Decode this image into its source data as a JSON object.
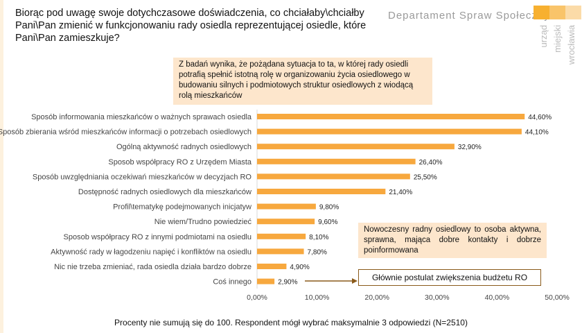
{
  "header": {
    "title": "Biorąc pod uwagę swoje dotychczasowe doświadczenia, co chciałaby\\chciałby Pani\\Pan zmienić w funkcjonowaniu rady osiedla reprezentującej osiedle, które Pani\\Pan zamieszkuje?",
    "logo_text": "Departament Spraw Społecznych",
    "logo_vertical": [
      "urząd",
      "miejski",
      "wrocławia"
    ],
    "logo_colors": [
      "#f7b030",
      "#f9c46a",
      "#fbdba8"
    ]
  },
  "callouts": {
    "top": "Z badań wynika, że pożądana sytuacja to ta, w której rady osiedli potrafią spełnić istotną rolę w organizowaniu życia osiedlowego w budowaniu silnych i podmiotowych struktur osiedlowych z wiodącą rolą mieszkańców",
    "middle": "Nowoczesny radny osiedlowy to osoba aktywna, sprawna, mająca dobre kontakty i dobrze poinformowana",
    "bottom": "Głównie postulat zwiększenia budżetu RO"
  },
  "footnote": "Procenty nie sumują się do 100. Respondent mógł wybrać maksymalnie 3 odpowiedzi (N=2510)",
  "chart_data": {
    "type": "bar",
    "orientation": "horizontal",
    "bar_color": "#f7a83e",
    "categories": [
      "Sposób informowania mieszkańców o ważnych sprawach osiedla",
      "Sposób zbierania wśród mieszkańców informacji o potrzebach osiedlowych",
      "Ogólną aktywność radnych osiedlowych",
      "Sposob współpracy RO z Urzędem Miasta",
      "Sposób uwzględniania oczekiwań mieszkańców w decyzjach RO",
      "Dostępność radnych osiedlowych dla mieszkańców",
      "Profil\\tematykę podejmowanych inicjatyw",
      "Nie wiem/Trudno powiedzieć",
      "Sposob współpracy RO z innymi podmiotami na osiedlu",
      "Aktywność rady w łagodzeniu napięć i konfliktów na osiedlu",
      "Nic nie trzeba zmieniać, rada osiedla działa bardzo dobrze",
      "Coś innego"
    ],
    "values": [
      44.6,
      44.1,
      32.9,
      26.4,
      25.5,
      21.4,
      9.8,
      9.6,
      8.1,
      7.8,
      4.9,
      2.9
    ],
    "data_labels": [
      "44,60%",
      "44,10%",
      "32,90%",
      "26,40%",
      "25,50%",
      "21,40%",
      "9,80%",
      "9,60%",
      "8,10%",
      "7,80%",
      "4,90%",
      "2,90%"
    ],
    "xlim": [
      0,
      50
    ],
    "xticks": [
      "0,00%",
      "10,00%",
      "20,00%",
      "30,00%",
      "40,00%",
      "50,00%"
    ],
    "grid": false
  }
}
